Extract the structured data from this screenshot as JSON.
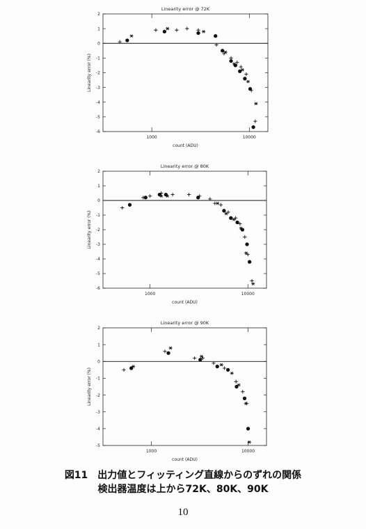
{
  "chart_data": [
    {
      "type": "scatter",
      "title": "Linearity error @ 72K",
      "xlabel": "count (ADU)",
      "ylabel": "Linearity error (%)",
      "xscale": "log",
      "xlim": [
        316,
        15500
      ],
      "xticks": [
        1000,
        10000
      ],
      "ylim": [
        -6,
        2
      ],
      "yticks": [
        -6,
        -5,
        -4,
        -3,
        -2,
        -1,
        0,
        1,
        2
      ],
      "zero_line": true,
      "series": [
        {
          "marker": "plus",
          "color": "#111111",
          "x": [
            470,
            1100,
            1800,
            2300,
            3000,
            4600,
            5500,
            6500,
            7500,
            8200,
            9300,
            10500,
            11500
          ],
          "values": [
            0.1,
            0.9,
            0.9,
            1.0,
            0.9,
            -0.1,
            -0.7,
            -1.0,
            -1.3,
            -1.6,
            -2.1,
            -3.2,
            -5.3
          ]
        },
        {
          "marker": "dot",
          "color": "#111111",
          "x": [
            560,
            1350,
            3000,
            4500,
            5300,
            6500,
            7200,
            8000,
            9000,
            10200,
            11000
          ],
          "values": [
            0.2,
            0.8,
            0.7,
            0.5,
            -0.5,
            -1.2,
            -1.5,
            -1.9,
            -2.4,
            -3.1,
            -5.7
          ]
        },
        {
          "marker": "star",
          "color": "#111111",
          "x": [
            620,
            1450,
            3400,
            5700,
            7000,
            8500,
            9700,
            11700
          ],
          "values": [
            0.5,
            1.0,
            0.8,
            -0.6,
            -1.4,
            -1.8,
            -2.6,
            -4.1
          ]
        }
      ]
    },
    {
      "type": "scatter",
      "title": "Linearity error @ 80K",
      "xlabel": "count (ADU)",
      "ylabel": "Linearity error (%)",
      "xscale": "log",
      "xlim": [
        330,
        15500
      ],
      "xticks": [
        1000,
        10000
      ],
      "ylim": [
        -6,
        2
      ],
      "yticks": [
        -6,
        -5,
        -4,
        -3,
        -2,
        -1,
        0,
        1,
        2
      ],
      "zero_line": true,
      "series": [
        {
          "marker": "plus",
          "color": "#111111",
          "x": [
            520,
            850,
            1000,
            1300,
            1700,
            2500,
            3200,
            4100,
            4600,
            5300,
            6300,
            7500,
            8300,
            9300,
            10000,
            11000
          ],
          "values": [
            -0.5,
            0.2,
            0.3,
            0.5,
            0.4,
            0.4,
            0.3,
            0.1,
            -0.2,
            -0.3,
            -0.8,
            -1.2,
            -1.6,
            -2.5,
            -3.7,
            -5.5
          ]
        },
        {
          "marker": "dot",
          "color": "#111111",
          "x": [
            620,
            900,
            1250,
            1450,
            3100,
            5700,
            6700,
            7800,
            8800,
            9800,
            10400
          ],
          "values": [
            -0.3,
            0.2,
            0.4,
            0.4,
            0.2,
            -0.7,
            -1.2,
            -1.5,
            -2.0,
            -3.0,
            -4.2
          ]
        },
        {
          "marker": "star",
          "color": "#111111",
          "x": [
            1300,
            1500,
            4900,
            6000,
            7200,
            8500,
            9600,
            11300
          ],
          "values": [
            0.3,
            0.3,
            -0.2,
            -0.9,
            -1.3,
            -1.9,
            -3.6,
            -5.7
          ]
        }
      ]
    },
    {
      "type": "scatter",
      "title": "Linearity error @ 90K",
      "xlabel": "count (ADU)",
      "ylabel": "Linearity error (%)",
      "xscale": "log",
      "xlim": [
        316,
        15500
      ],
      "xticks": [
        1000,
        10000
      ],
      "ylim": [
        -5,
        2
      ],
      "yticks": [
        -5,
        -4,
        -3,
        -2,
        -1,
        0,
        1,
        2
      ],
      "zero_line": true,
      "series": [
        {
          "marker": "plus",
          "color": "#111111",
          "x": [
            520,
            1380,
            2800,
            3400,
            4400,
            5700,
            7500,
            8800,
            9700
          ],
          "values": [
            -0.5,
            0.6,
            0.2,
            0.2,
            -0.1,
            -0.4,
            -1.2,
            -1.8,
            -2.5
          ]
        },
        {
          "marker": "dot",
          "color": "#111111",
          "x": [
            620,
            1500,
            3200,
            4800,
            6200,
            7600,
            9200,
            10000
          ],
          "values": [
            -0.4,
            0.5,
            0.1,
            -0.3,
            -0.5,
            -1.5,
            -2.2,
            -4.0
          ]
        },
        {
          "marker": "star",
          "color": "#111111",
          "x": [
            650,
            1580,
            3300,
            5300,
            6800,
            8000,
            9500,
            10300
          ],
          "values": [
            -0.3,
            0.8,
            0.3,
            -0.2,
            -0.7,
            -1.4,
            -2.5,
            -4.8
          ]
        }
      ]
    }
  ],
  "caption": [
    "図11　出力値とフィッティング直線からのずれの関係",
    "検出器温度は上から72K、80K、90K"
  ],
  "page_number": "10"
}
